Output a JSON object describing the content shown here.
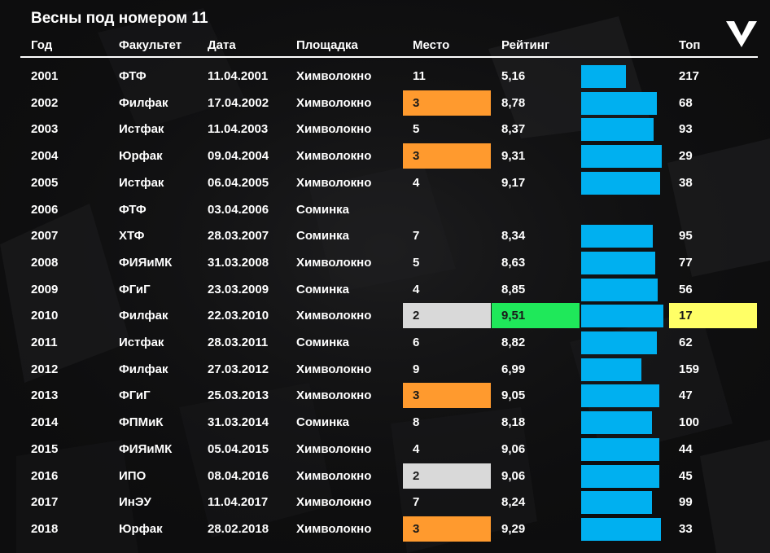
{
  "title": "Весны под номером 11",
  "columns": [
    "Год",
    "Факультет",
    "Дата",
    "Площадка",
    "Место",
    "Рейтинг",
    "Топ"
  ],
  "colors": {
    "bar": "#00b0f0",
    "place_3": "#ff9a2e",
    "place_2": "#d9d9d9",
    "best_rating": "#1fe85a",
    "best_top": "#ffff66"
  },
  "chart_data": {
    "type": "table",
    "title": "Весны под номером 11",
    "rating_scale": [
      0,
      10
    ],
    "rows": [
      {
        "year": "2001",
        "faculty": "ФТФ",
        "date": "11.04.2001",
        "venue": "Химволокно",
        "place": "11",
        "rating": 5.16,
        "rating_label": "5,16",
        "top": "217"
      },
      {
        "year": "2002",
        "faculty": "Филфак",
        "date": "17.04.2002",
        "venue": "Химволокно",
        "place": "3",
        "rating": 8.78,
        "rating_label": "8,78",
        "top": "68"
      },
      {
        "year": "2003",
        "faculty": "Истфак",
        "date": "11.04.2003",
        "venue": "Химволокно",
        "place": "5",
        "rating": 8.37,
        "rating_label": "8,37",
        "top": "93"
      },
      {
        "year": "2004",
        "faculty": "Юрфак",
        "date": "09.04.2004",
        "venue": "Химволокно",
        "place": "3",
        "rating": 9.31,
        "rating_label": "9,31",
        "top": "29"
      },
      {
        "year": "2005",
        "faculty": "Истфак",
        "date": "06.04.2005",
        "venue": "Химволокно",
        "place": "4",
        "rating": 9.17,
        "rating_label": "9,17",
        "top": "38"
      },
      {
        "year": "2006",
        "faculty": "ФТФ",
        "date": "03.04.2006",
        "venue": "Соминка",
        "place": "",
        "rating": null,
        "rating_label": "",
        "top": ""
      },
      {
        "year": "2007",
        "faculty": "ХТФ",
        "date": "28.03.2007",
        "venue": "Соминка",
        "place": "7",
        "rating": 8.34,
        "rating_label": "8,34",
        "top": "95"
      },
      {
        "year": "2008",
        "faculty": "ФИЯиМК",
        "date": "31.03.2008",
        "venue": "Химволокно",
        "place": "5",
        "rating": 8.63,
        "rating_label": "8,63",
        "top": "77"
      },
      {
        "year": "2009",
        "faculty": "ФГиГ",
        "date": "23.03.2009",
        "venue": "Соминка",
        "place": "4",
        "rating": 8.85,
        "rating_label": "8,85",
        "top": "56"
      },
      {
        "year": "2010",
        "faculty": "Филфак",
        "date": "22.03.2010",
        "venue": "Химволокно",
        "place": "2",
        "rating": 9.51,
        "rating_label": "9,51",
        "top": "17",
        "best": true
      },
      {
        "year": "2011",
        "faculty": "Истфак",
        "date": "28.03.2011",
        "venue": "Соминка",
        "place": "6",
        "rating": 8.82,
        "rating_label": "8,82",
        "top": "62"
      },
      {
        "year": "2012",
        "faculty": "Филфак",
        "date": "27.03.2012",
        "venue": "Химволокно",
        "place": "9",
        "rating": 6.99,
        "rating_label": "6,99",
        "top": "159"
      },
      {
        "year": "2013",
        "faculty": "ФГиГ",
        "date": "25.03.2013",
        "venue": "Химволокно",
        "place": "3",
        "rating": 9.05,
        "rating_label": "9,05",
        "top": "47"
      },
      {
        "year": "2014",
        "faculty": "ФПМиК",
        "date": "31.03.2014",
        "venue": "Соминка",
        "place": "8",
        "rating": 8.18,
        "rating_label": "8,18",
        "top": "100"
      },
      {
        "year": "2015",
        "faculty": "ФИЯиМК",
        "date": "05.04.2015",
        "venue": "Химволокно",
        "place": "4",
        "rating": 9.06,
        "rating_label": "9,06",
        "top": "44"
      },
      {
        "year": "2016",
        "faculty": "ИПО",
        "date": "08.04.2016",
        "venue": "Химволокно",
        "place": "2",
        "rating": 9.06,
        "rating_label": "9,06",
        "top": "45"
      },
      {
        "year": "2017",
        "faculty": "ИнЭУ",
        "date": "11.04.2017",
        "venue": "Химволокно",
        "place": "7",
        "rating": 8.24,
        "rating_label": "8,24",
        "top": "99"
      },
      {
        "year": "2018",
        "faculty": "Юрфак",
        "date": "28.02.2018",
        "venue": "Химволокно",
        "place": "3",
        "rating": 9.29,
        "rating_label": "9,29",
        "top": "33"
      }
    ]
  }
}
